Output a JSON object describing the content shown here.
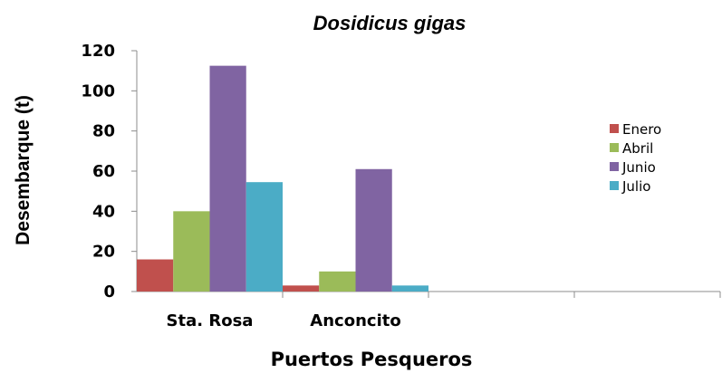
{
  "chart_data": {
    "type": "bar",
    "title": "Dosidicus gigas",
    "xlabel": "Puertos Pesqueros",
    "ylabel": "Desembarque (t)",
    "ylim": [
      0,
      120
    ],
    "yticks": [
      0,
      20,
      40,
      60,
      80,
      100,
      120
    ],
    "categories": [
      "Sta. Rosa",
      "Anconcito",
      "",
      ""
    ],
    "series": [
      {
        "name": "Enero",
        "color": "#c0504d",
        "values": [
          16,
          3,
          null,
          null
        ]
      },
      {
        "name": "Abril",
        "color": "#9bbb59",
        "values": [
          40,
          10,
          null,
          null
        ]
      },
      {
        "name": "Junio",
        "color": "#8064a2",
        "values": [
          112.5,
          61,
          null,
          null
        ]
      },
      {
        "name": "Julio",
        "color": "#4bacc6",
        "values": [
          54.5,
          3,
          null,
          null
        ]
      }
    ],
    "grid": false,
    "legend_position": "right"
  }
}
